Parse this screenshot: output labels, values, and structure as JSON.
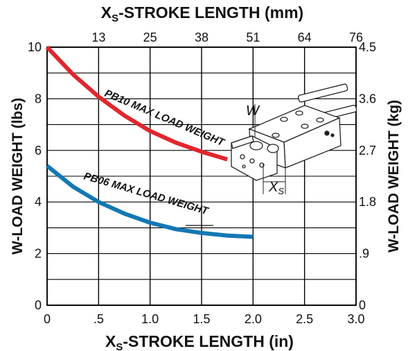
{
  "chart_data": {
    "type": "line",
    "title_top": {
      "main": "X",
      "sub": "S",
      "rest": "-STROKE LENGTH (mm)"
    },
    "title_bottom": {
      "main": "X",
      "sub": "S",
      "rest": "-STROKE LENGTH (in)"
    },
    "ylabel_left": "W-LOAD WEIGHT (lbs)",
    "ylabel_right": "W-LOAD WEIGHT (kg)",
    "xlim": [
      0,
      3.0
    ],
    "ylim": [
      0,
      10
    ],
    "x_ticks_bottom": [
      "0",
      ".5",
      "1.0",
      "1.5",
      "2.0",
      "2.5",
      "3.0"
    ],
    "x_ticks_top": [
      "13",
      "25",
      "38",
      "51",
      "64",
      "76"
    ],
    "y_ticks_left": [
      "0",
      "2",
      "4",
      "6",
      "8",
      "10"
    ],
    "y_ticks_right": [
      "0",
      ".9",
      "1.8",
      "2.7",
      "3.6",
      "4.5"
    ],
    "grid": true,
    "series": [
      {
        "name": "PB10 MAX LOAD WEIGHT",
        "color": "#e0262e",
        "x": [
          0,
          0.25,
          0.5,
          0.75,
          1.0,
          1.25,
          1.5,
          1.75
        ],
        "y": [
          10.0,
          8.95,
          8.08,
          7.35,
          6.75,
          6.3,
          5.95,
          5.65
        ]
      },
      {
        "name": "PB06 MAX LOAD WEIGHT",
        "color": "#1378b4",
        "x": [
          0,
          0.25,
          0.5,
          0.75,
          1.0,
          1.25,
          1.5,
          1.75,
          2.0
        ],
        "y": [
          5.4,
          4.6,
          4.0,
          3.55,
          3.2,
          2.95,
          2.8,
          2.7,
          2.65
        ]
      }
    ],
    "diagram_labels": {
      "load": "W",
      "stroke": "X",
      "stroke_sub": "S"
    }
  }
}
